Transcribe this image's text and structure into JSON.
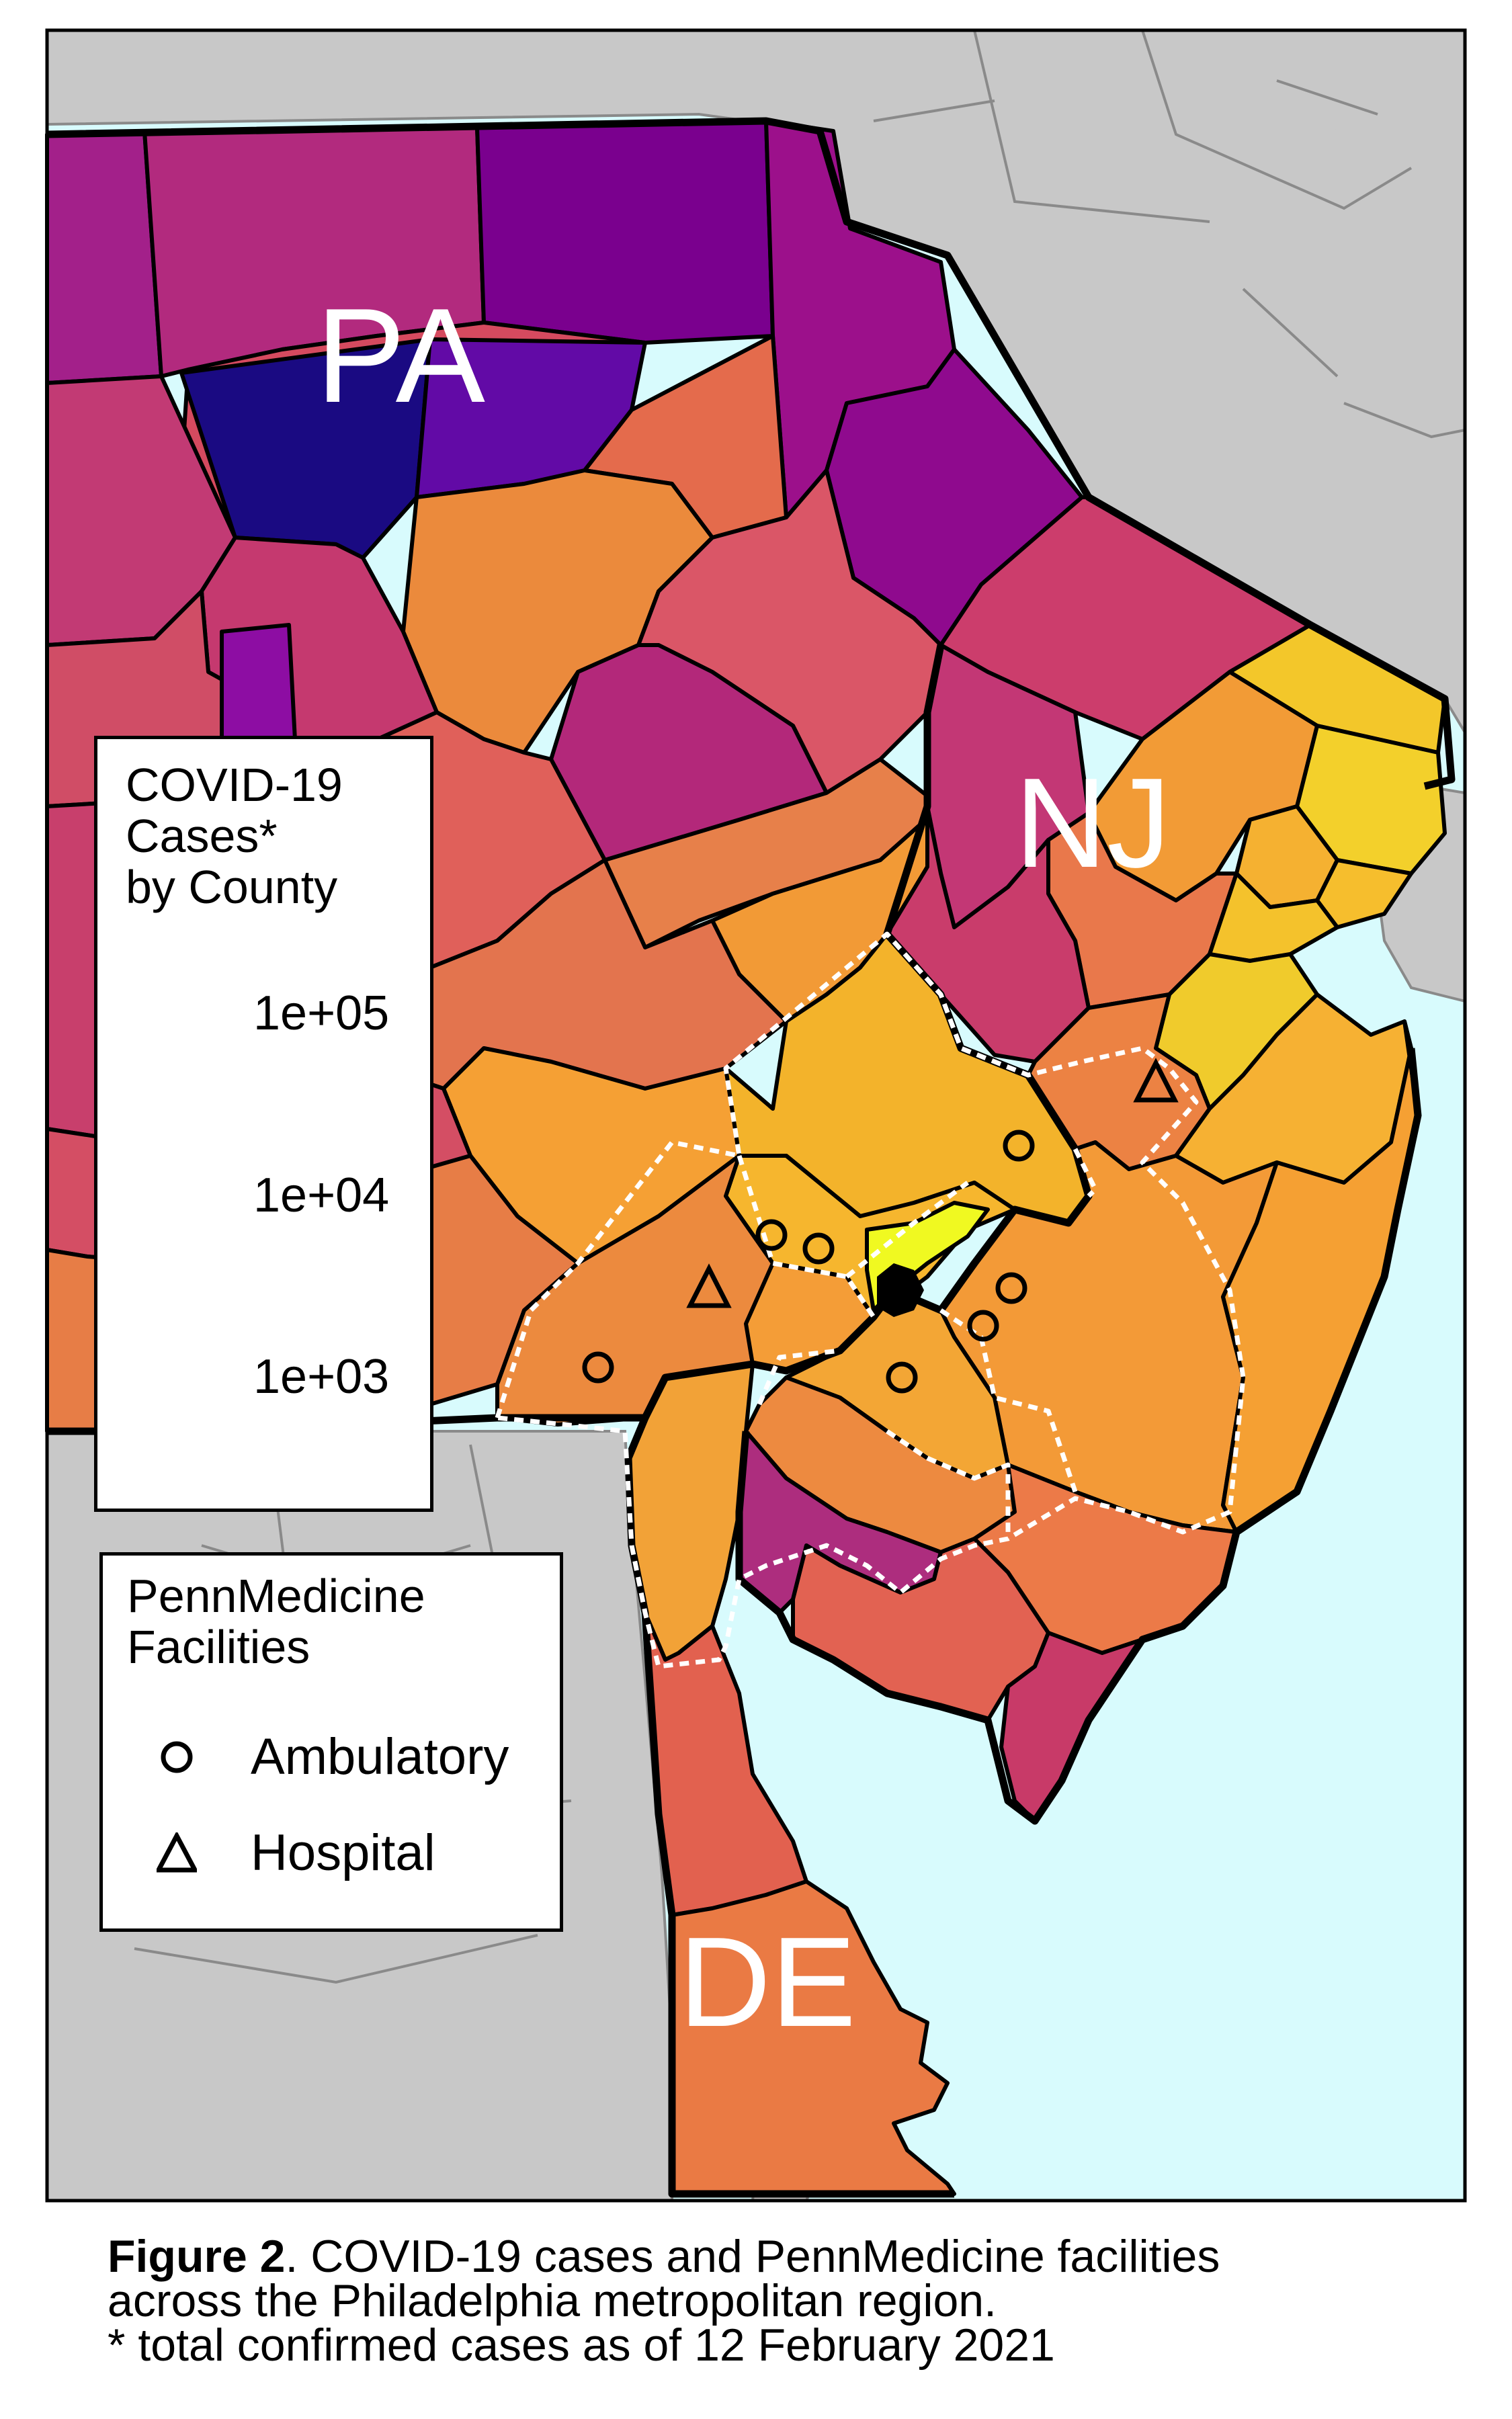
{
  "map": {
    "state_labels": [
      "PA",
      "NJ",
      "DE"
    ],
    "colors": {
      "water": "#d8fbfd",
      "other_land": "#c8c8c8",
      "county_border": "#000000",
      "facility_area_border": "#ffffff"
    }
  },
  "cases_legend": {
    "title": "COVID-19\nCases*\nby County",
    "scale": "log",
    "ticks": [
      "1e+05",
      "1e+04",
      "1e+03"
    ],
    "colormap": [
      "#0d0887",
      "#6a00a8",
      "#b12a90",
      "#e16462",
      "#fca636",
      "#f0f921"
    ]
  },
  "facilities_legend": {
    "title": "PennMedicine\nFacilities",
    "ambulatory_label": "Ambulatory",
    "hospital_label": "Hospital",
    "ambulatory_icon": "circle-icon",
    "hospital_icon": "triangle-icon"
  },
  "caption": {
    "figure_label": "Figure 2",
    "line1": ". COVID-19 cases and PennMedicine facilities",
    "line2": "across the Philadelphia metropolitan region.",
    "line3": "* total confirmed cases as of 12 February 2021"
  }
}
